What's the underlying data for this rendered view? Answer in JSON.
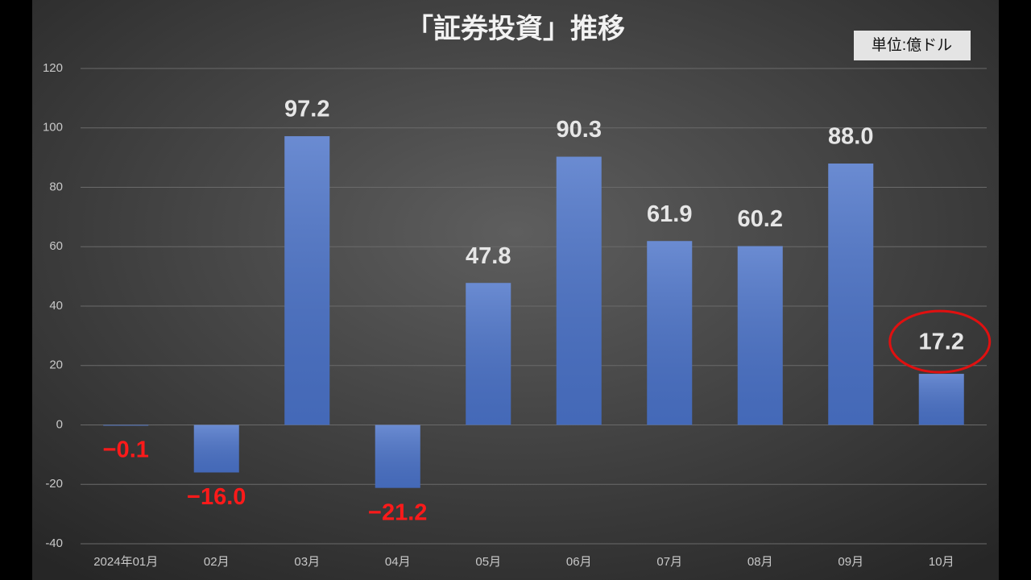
{
  "chart_data": {
    "type": "bar",
    "title": "「証券投資」推移",
    "unit": "単位:億ドル",
    "categories": [
      "2024年01月",
      "02月",
      "03月",
      "04月",
      "05月",
      "06月",
      "07月",
      "08月",
      "09月",
      "10月"
    ],
    "values": [
      -0.1,
      -16.0,
      97.2,
      -21.2,
      47.8,
      90.3,
      61.9,
      60.2,
      88.0,
      17.2
    ],
    "value_labels": [
      "−0.1",
      "−16.0",
      "97.2",
      "−21.2",
      "47.8",
      "90.3",
      "61.9",
      "60.2",
      "88.0",
      "17.2"
    ],
    "color": "#4a72c8",
    "positive_label_color": "#e6e6e6",
    "negative_label_color": "#ff1a1a",
    "ylim": [
      -40,
      120
    ],
    "yticks": [
      -40,
      -20,
      0,
      20,
      40,
      60,
      80,
      100,
      120
    ],
    "grid": true
  }
}
